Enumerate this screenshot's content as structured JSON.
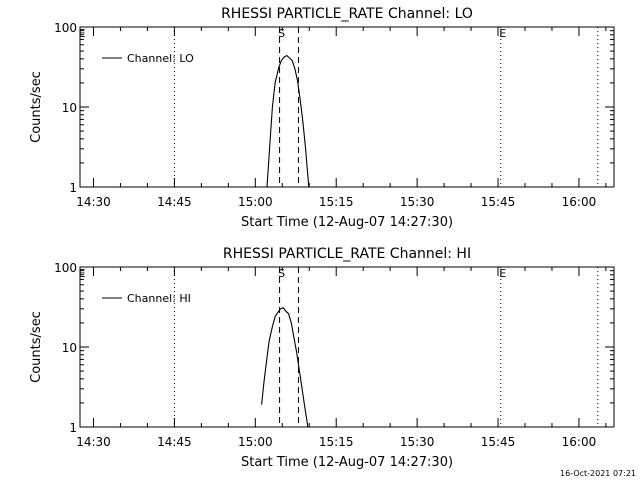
{
  "footer": {
    "timestamp": "16-Oct-2021 07:21"
  },
  "chart_data": [
    {
      "type": "line",
      "title": "RHESSI PARTICLE_RATE Channel: LO",
      "xlabel": "Start Time (12-Aug-07 14:27:30)",
      "ylabel": "Counts/sec",
      "yscale": "log",
      "ylim": [
        1,
        100
      ],
      "xlim": [
        "14:27:30",
        "16:06:30"
      ],
      "x_ticks": [
        "14:30",
        "14:45",
        "15:00",
        "15:15",
        "15:30",
        "15:45",
        "16:00"
      ],
      "y_ticks": [
        "1",
        "10",
        "100"
      ],
      "legend": {
        "position": "top-left",
        "label": "Channel: LO"
      },
      "markers": [
        {
          "label": "E",
          "time": "14:27:30",
          "style": "none"
        },
        {
          "label": "",
          "time": "14:45:00",
          "style": "dotted"
        },
        {
          "label": "S",
          "time": "15:04:30",
          "style": "dashed"
        },
        {
          "label": "",
          "time": "15:08:00",
          "style": "dashed"
        },
        {
          "label": "E",
          "time": "15:45:30",
          "style": "dotted"
        },
        {
          "label": "",
          "time": "16:03:30",
          "style": "dotted"
        }
      ],
      "series": [
        {
          "name": "Channel: LO",
          "x": [
            "15:02:10",
            "15:02:40",
            "15:03:10",
            "15:03:40",
            "15:04:20",
            "15:04:50",
            "15:05:20",
            "15:05:50",
            "15:06:20",
            "15:06:50",
            "15:07:20",
            "15:07:50",
            "15:08:20",
            "15:08:50",
            "15:09:20",
            "15:09:40",
            "15:09:55"
          ],
          "y": [
            1.0,
            3.2,
            10,
            20,
            31,
            38,
            42,
            44,
            41,
            38,
            30,
            21,
            12,
            6.5,
            3.0,
            1.6,
            1.0
          ]
        }
      ]
    },
    {
      "type": "line",
      "title": "RHESSI PARTICLE_RATE Channel: HI",
      "xlabel": "Start Time (12-Aug-07 14:27:30)",
      "ylabel": "Counts/sec",
      "yscale": "log",
      "ylim": [
        1,
        100
      ],
      "xlim": [
        "14:27:30",
        "16:06:30"
      ],
      "x_ticks": [
        "14:30",
        "14:45",
        "15:00",
        "15:15",
        "15:30",
        "15:45",
        "16:00"
      ],
      "y_ticks": [
        "1",
        "10",
        "100"
      ],
      "legend": {
        "position": "top-left",
        "label": "Channel: HI"
      },
      "markers": [
        {
          "label": "E",
          "time": "14:27:30",
          "style": "none"
        },
        {
          "label": "",
          "time": "14:45:00",
          "style": "dotted"
        },
        {
          "label": "S",
          "time": "15:04:30",
          "style": "dashed"
        },
        {
          "label": "",
          "time": "15:08:00",
          "style": "dashed"
        },
        {
          "label": "E",
          "time": "15:45:30",
          "style": "dotted"
        },
        {
          "label": "",
          "time": "16:03:30",
          "style": "dotted"
        }
      ],
      "series": [
        {
          "name": "Channel: HI",
          "x": [
            "15:01:10",
            "15:01:35",
            "15:02:00",
            "15:02:35",
            "15:03:10",
            "15:03:40",
            "15:04:10",
            "15:04:40",
            "15:05:10",
            "15:05:40",
            "15:06:10",
            "15:06:40",
            "15:07:10",
            "15:07:40",
            "15:08:10",
            "15:08:40",
            "15:09:10",
            "15:09:30",
            "15:09:45"
          ],
          "y": [
            1.9,
            3.5,
            6.0,
            12,
            18,
            24,
            27,
            30,
            31,
            28,
            26,
            20,
            13,
            8.5,
            5.0,
            3.0,
            1.8,
            1.3,
            1.0
          ]
        }
      ]
    }
  ]
}
